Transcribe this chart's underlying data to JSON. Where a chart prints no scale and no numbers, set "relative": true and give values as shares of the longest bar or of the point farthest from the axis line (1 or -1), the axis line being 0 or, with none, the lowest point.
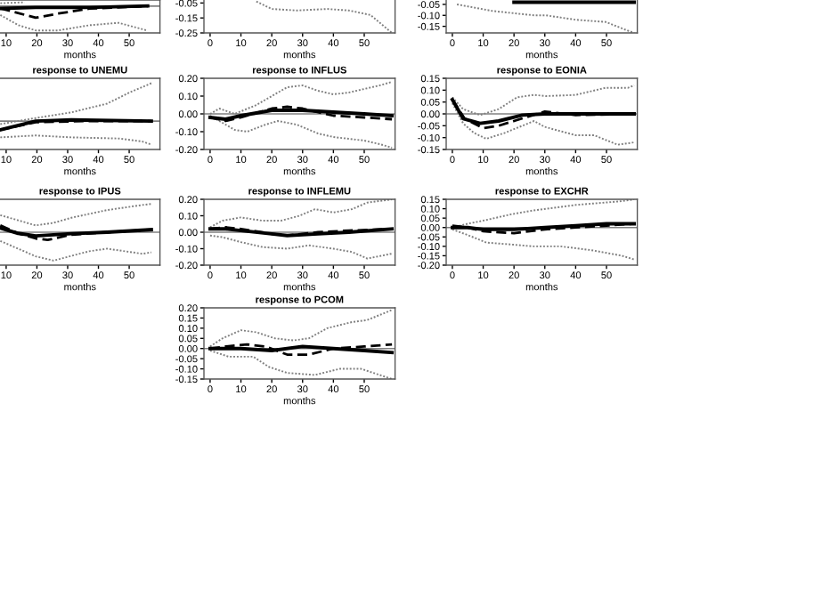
{
  "chart_data": [
    {
      "type": "line",
      "relative": true,
      "xlabel": "months",
      "xlim": [
        8,
        60
      ],
      "xticks": [
        10,
        20,
        30,
        40,
        50
      ],
      "tick_labels": "x",
      "grid": false,
      "legend": false,
      "ref_lines": [
        {
          "axis": "y",
          "value": 0,
          "color": "#808080"
        }
      ],
      "series": [
        {
          "color": "#808080",
          "line_style": "dotted",
          "x": [
            8.1,
            14,
            19.6,
            27,
            37,
            46.6,
            56
          ],
          "values": [
            -0.36,
            -0.78,
            -0.99,
            -0.99,
            -0.78,
            -0.68,
            -1
          ]
        },
        {
          "color": "#808080",
          "line_style": "dotted",
          "x": [
            8.1,
            12,
            16
          ],
          "values": [
            0.12,
            0.14,
            0.16
          ]
        },
        {
          "color": "#000000",
          "line_style": "solid",
          "x": [
            8.1,
            19.6,
            37,
            56
          ],
          "values": [
            -0.09,
            -0.05,
            -0.05,
            0.01
          ]
        },
        {
          "color": "#000000",
          "line_style": "dashed",
          "x": [
            8.1,
            19.6,
            27,
            37,
            56
          ],
          "values": [
            -0.09,
            -0.47,
            -0.3,
            -0.1,
            0
          ]
        }
      ]
    },
    {
      "type": "line",
      "xlabel": "months",
      "xlim": [
        -2,
        60
      ],
      "ylim": [
        -0.25,
        -0.03
      ],
      "xticks": [
        0,
        10,
        20,
        30,
        40,
        50
      ],
      "yticks": [
        {
          "value": -0.25,
          "label": "-0.25"
        },
        {
          "value": -0.15,
          "label": "-0.15"
        },
        {
          "value": -0.05,
          "label": "-0.05"
        }
      ],
      "grid": false,
      "legend": false,
      "series": [
        {
          "color": "#808080",
          "line_style": "dotted",
          "x": [
            15,
            20,
            28,
            38,
            45,
            52,
            59
          ],
          "values": [
            -0.04,
            -0.09,
            -0.1,
            -0.09,
            -0.1,
            -0.13,
            -0.25
          ]
        }
      ]
    },
    {
      "type": "line",
      "xlabel": "months",
      "xlim": [
        -2,
        60
      ],
      "ylim": [
        -0.18,
        -0.03
      ],
      "xticks": [
        0,
        10,
        20,
        30,
        40,
        50
      ],
      "yticks": [
        {
          "value": -0.15,
          "label": "-0.15"
        },
        {
          "value": -0.1,
          "label": "-0.10"
        },
        {
          "value": -0.05,
          "label": "-0.05"
        }
      ],
      "grid": false,
      "legend": false,
      "series": [
        {
          "color": "#808080",
          "line_style": "dotted",
          "x": [
            1.5,
            13,
            26.6,
            30.4,
            40,
            49.7,
            57,
            59
          ],
          "values": [
            -0.05,
            -0.08,
            -0.1,
            -0.1,
            -0.12,
            -0.13,
            -0.17,
            -0.18
          ]
        },
        {
          "color": "#000000",
          "line_style": "solid",
          "x": [
            20,
            59
          ],
          "values": [
            -0.04,
            -0.04
          ]
        }
      ]
    },
    {
      "type": "line",
      "relative": true,
      "title": "response to UNEMU",
      "xlabel": "months",
      "xlim": [
        8,
        60
      ],
      "xticks": [
        10,
        20,
        30,
        40,
        50
      ],
      "tick_labels": "x",
      "grid": false,
      "legend": false,
      "ref_lines": [
        {
          "axis": "y",
          "value": 0,
          "color": "#808080"
        }
      ],
      "series": [
        {
          "color": "#808080",
          "line_style": "dotted",
          "x": [
            8.1,
            19.6,
            31.2,
            42.8,
            50.5,
            57.2
          ],
          "values": [
            -0.08,
            0.08,
            0.23,
            0.46,
            0.77,
            1.0
          ]
        },
        {
          "color": "#808080",
          "line_style": "dotted",
          "x": [
            8.1,
            19.6,
            31.2,
            46.6,
            54.3,
            57.2
          ],
          "values": [
            -0.43,
            -0.38,
            -0.43,
            -0.46,
            -0.54,
            -0.62
          ]
        },
        {
          "color": "#000000",
          "line_style": "solid",
          "x": [
            8.1,
            19.6,
            31.2,
            57.2
          ],
          "values": [
            -0.23,
            0,
            0.03,
            0
          ]
        },
        {
          "color": "#000000",
          "line_style": "dashed",
          "x": [
            8.1,
            19.6,
            37,
            57.2
          ],
          "values": [
            -0.23,
            -0.03,
            0,
            0
          ]
        }
      ]
    },
    {
      "type": "line",
      "title": "response to INFLUS",
      "xlabel": "months",
      "xlim": [
        -2,
        60
      ],
      "ylim": [
        -0.2,
        0.2
      ],
      "xticks": [
        0,
        10,
        20,
        30,
        40,
        50
      ],
      "yticks": [
        {
          "value": -0.2,
          "label": "-0.20"
        },
        {
          "value": -0.1,
          "label": "-0.10"
        },
        {
          "value": 0,
          "label": "0.00"
        },
        {
          "value": 0.1,
          "label": "0.10"
        },
        {
          "value": 0.2,
          "label": "0.20"
        }
      ],
      "grid": false,
      "legend": false,
      "ref_lines": [
        {
          "axis": "y",
          "value": 0,
          "color": "#808080"
        }
      ],
      "series": [
        {
          "color": "#808080",
          "line_style": "dotted",
          "x": [
            0,
            3,
            8,
            15,
            20,
            25,
            30,
            35,
            40,
            45,
            50,
            55,
            59
          ],
          "values": [
            0.0,
            0.03,
            0.0,
            0.05,
            0.1,
            0.15,
            0.16,
            0.13,
            0.11,
            0.12,
            0.14,
            0.16,
            0.18
          ]
        },
        {
          "color": "#808080",
          "line_style": "dotted",
          "x": [
            0,
            3,
            8,
            12,
            18,
            22,
            28,
            35,
            40,
            45,
            50,
            55,
            59
          ],
          "values": [
            -0.01,
            -0.04,
            -0.09,
            -0.1,
            -0.06,
            -0.04,
            -0.06,
            -0.11,
            -0.13,
            -0.14,
            -0.15,
            -0.17,
            -0.19
          ]
        },
        {
          "color": "#000000",
          "line_style": "solid",
          "x": [
            0,
            5,
            10,
            20,
            30,
            40,
            50,
            59
          ],
          "values": [
            -0.02,
            -0.03,
            -0.01,
            0.02,
            0.02,
            0.01,
            0.0,
            -0.01
          ]
        },
        {
          "color": "#000000",
          "line_style": "dashed",
          "x": [
            0,
            5,
            10,
            20,
            25,
            30,
            40,
            50,
            59
          ],
          "values": [
            -0.02,
            -0.04,
            -0.02,
            0.03,
            0.04,
            0.03,
            -0.01,
            -0.02,
            -0.03
          ]
        }
      ]
    },
    {
      "type": "line",
      "title": "response to EONIA",
      "xlabel": "months",
      "xlim": [
        -2,
        60
      ],
      "ylim": [
        -0.15,
        0.15
      ],
      "xticks": [
        0,
        10,
        20,
        30,
        40,
        50
      ],
      "yticks": [
        {
          "value": -0.15,
          "label": "-0.15"
        },
        {
          "value": -0.1,
          "label": "-0.10"
        },
        {
          "value": -0.05,
          "label": "-0.05"
        },
        {
          "value": 0,
          "label": "0.00"
        },
        {
          "value": 0.05,
          "label": "0.05"
        },
        {
          "value": 0.1,
          "label": "0.10"
        },
        {
          "value": 0.15,
          "label": "0.15"
        }
      ],
      "grid": false,
      "legend": false,
      "ref_lines": [
        {
          "axis": "y",
          "value": 0,
          "color": "#808080"
        }
      ],
      "series": [
        {
          "color": "#808080",
          "line_style": "dotted",
          "x": [
            0,
            3.5,
            9,
            15,
            21,
            26.5,
            30.4,
            40,
            49.7,
            57,
            59
          ],
          "values": [
            0.07,
            0.02,
            -0.005,
            0.02,
            0.07,
            0.08,
            0.075,
            0.08,
            0.11,
            0.11,
            0.12
          ]
        },
        {
          "color": "#808080",
          "line_style": "dotted",
          "x": [
            0,
            3.5,
            7,
            11,
            17,
            26.5,
            30,
            40,
            46,
            53.6,
            59
          ],
          "values": [
            0.045,
            -0.04,
            -0.08,
            -0.105,
            -0.08,
            -0.03,
            -0.055,
            -0.09,
            -0.09,
            -0.13,
            -0.12
          ]
        },
        {
          "color": "#000000",
          "line_style": "solid",
          "x": [
            0,
            3.5,
            9,
            15,
            22.7,
            30,
            59
          ],
          "values": [
            0.06,
            -0.02,
            -0.04,
            -0.03,
            -0.005,
            0.0,
            0.0
          ]
        },
        {
          "color": "#000000",
          "line_style": "dashed",
          "x": [
            0,
            4,
            10,
            15,
            20,
            25,
            30,
            40,
            59
          ],
          "values": [
            0.06,
            -0.02,
            -0.06,
            -0.05,
            -0.03,
            -0.01,
            0.01,
            -0.005,
            0.0
          ]
        }
      ]
    },
    {
      "type": "line",
      "relative": true,
      "title": "response to IPUS",
      "xlabel": "months",
      "xlim": [
        8,
        60
      ],
      "xticks": [
        10,
        20,
        30,
        40,
        50
      ],
      "tick_labels": "x",
      "grid": false,
      "legend": false,
      "ref_lines": [
        {
          "axis": "y",
          "value": 0,
          "color": "#808080"
        }
      ],
      "series": [
        {
          "color": "#808080",
          "line_style": "dotted",
          "x": [
            8.1,
            13.9,
            19.6,
            25.4,
            31.2,
            42.8,
            54.3,
            57.2
          ],
          "values": [
            0.6,
            0.42,
            0.24,
            0.33,
            0.51,
            0.78,
            0.96,
            1.0
          ]
        },
        {
          "color": "#808080",
          "line_style": "dotted",
          "x": [
            8.1,
            13.9,
            19.6,
            25.4,
            37,
            42.8,
            48.6,
            54.3,
            57.2
          ],
          "values": [
            -0.31,
            -0.58,
            -0.85,
            -1.0,
            -0.67,
            -0.58,
            -0.67,
            -0.76,
            -0.71
          ]
        },
        {
          "color": "#000000",
          "line_style": "solid",
          "x": [
            8.1,
            13.9,
            19.6,
            31.2,
            42.8,
            57.2
          ],
          "values": [
            0.15,
            -0.04,
            -0.13,
            -0.05,
            0,
            0.09
          ]
        },
        {
          "color": "#000000",
          "line_style": "dashed",
          "x": [
            8.1,
            13.9,
            19.6,
            23.5,
            31.2,
            42.8,
            57.2
          ],
          "values": [
            0.24,
            -0.04,
            -0.22,
            -0.27,
            -0.09,
            0,
            0.09
          ]
        }
      ]
    },
    {
      "type": "line",
      "title": "response to INFLEMU",
      "xlabel": "months",
      "xlim": [
        -2,
        60
      ],
      "ylim": [
        -0.2,
        0.2
      ],
      "xticks": [
        0,
        10,
        20,
        30,
        40,
        50
      ],
      "yticks": [
        {
          "value": -0.2,
          "label": "-0.20"
        },
        {
          "value": -0.1,
          "label": "-0.10"
        },
        {
          "value": 0,
          "label": "0.00"
        },
        {
          "value": 0.1,
          "label": "0.10"
        },
        {
          "value": 0.2,
          "label": "0.20"
        }
      ],
      "grid": false,
      "legend": false,
      "ref_lines": [
        {
          "axis": "y",
          "value": 0,
          "color": "#808080"
        }
      ],
      "series": [
        {
          "color": "#808080",
          "line_style": "dotted",
          "x": [
            0,
            4,
            10,
            17,
            23,
            29,
            34,
            40,
            46,
            51,
            59
          ],
          "values": [
            0.03,
            0.07,
            0.09,
            0.07,
            0.07,
            0.1,
            0.14,
            0.12,
            0.14,
            0.18,
            0.2
          ]
        },
        {
          "color": "#808080",
          "line_style": "dotted",
          "x": [
            0,
            4,
            10,
            17,
            25,
            32,
            40,
            46,
            51,
            59
          ],
          "values": [
            -0.02,
            -0.03,
            -0.06,
            -0.09,
            -0.1,
            -0.08,
            -0.1,
            -0.12,
            -0.16,
            -0.13
          ]
        },
        {
          "color": "#000000",
          "line_style": "solid",
          "x": [
            0,
            5,
            10,
            20,
            25,
            35,
            45,
            59
          ],
          "values": [
            0.02,
            0.02,
            0.01,
            -0.01,
            -0.02,
            -0.01,
            0.0,
            0.02
          ]
        },
        {
          "color": "#000000",
          "line_style": "dashed",
          "x": [
            0,
            5,
            10,
            20,
            25,
            35,
            45,
            59
          ],
          "values": [
            0.02,
            0.03,
            0.02,
            -0.01,
            -0.02,
            0.0,
            0.01,
            0.02
          ]
        }
      ]
    },
    {
      "type": "line",
      "title": "response to EXCHR",
      "xlabel": "months",
      "xlim": [
        -2,
        60
      ],
      "ylim": [
        -0.2,
        0.15
      ],
      "xticks": [
        0,
        10,
        20,
        30,
        40,
        50
      ],
      "yticks": [
        {
          "value": -0.2,
          "label": "-0.20"
        },
        {
          "value": -0.15,
          "label": "-0.15"
        },
        {
          "value": -0.1,
          "label": "-0.10"
        },
        {
          "value": -0.05,
          "label": "-0.05"
        },
        {
          "value": 0,
          "label": "0.00"
        },
        {
          "value": 0.05,
          "label": "0.05"
        },
        {
          "value": 0.1,
          "label": "0.10"
        },
        {
          "value": 0.15,
          "label": "0.15"
        }
      ],
      "grid": false,
      "legend": false,
      "ref_lines": [
        {
          "axis": "y",
          "value": 0,
          "color": "#808080"
        }
      ],
      "series": [
        {
          "color": "#808080",
          "line_style": "dotted",
          "x": [
            0,
            5,
            11,
            19,
            26,
            40,
            55,
            59
          ],
          "values": [
            0.0,
            0.02,
            0.04,
            0.07,
            0.09,
            0.12,
            0.14,
            0.15
          ]
        },
        {
          "color": "#808080",
          "line_style": "dotted",
          "x": [
            0,
            5,
            11,
            19,
            26,
            35,
            45,
            55,
            59
          ],
          "values": [
            -0.01,
            -0.04,
            -0.08,
            -0.09,
            -0.1,
            -0.1,
            -0.12,
            -0.15,
            -0.17
          ]
        },
        {
          "color": "#000000",
          "line_style": "solid",
          "x": [
            0,
            5,
            10,
            20,
            30,
            40,
            50,
            59
          ],
          "values": [
            0.0,
            0.0,
            -0.01,
            -0.01,
            0.0,
            0.01,
            0.02,
            0.02
          ]
        },
        {
          "color": "#000000",
          "line_style": "dashed",
          "x": [
            0,
            5,
            10,
            20,
            30,
            40,
            50,
            59
          ],
          "values": [
            0.01,
            0.0,
            -0.02,
            -0.03,
            -0.01,
            0.0,
            0.01,
            0.02
          ]
        }
      ]
    },
    {
      "type": "line",
      "title": "response to PCOM",
      "xlabel": "months",
      "xlim": [
        -2,
        60
      ],
      "ylim": [
        -0.15,
        0.2
      ],
      "xticks": [
        0,
        10,
        20,
        30,
        40,
        50
      ],
      "yticks": [
        {
          "value": -0.15,
          "label": "-0.15"
        },
        {
          "value": -0.1,
          "label": "-0.10"
        },
        {
          "value": -0.05,
          "label": "-0.05"
        },
        {
          "value": 0,
          "label": "0.00"
        },
        {
          "value": 0.05,
          "label": "0.05"
        },
        {
          "value": 0.1,
          "label": "0.10"
        },
        {
          "value": 0.15,
          "label": "0.15"
        },
        {
          "value": 0.2,
          "label": "0.20"
        }
      ],
      "grid": false,
      "legend": false,
      "ref_lines": [
        {
          "axis": "y",
          "value": 0,
          "color": "#808080"
        }
      ],
      "series": [
        {
          "color": "#808080",
          "line_style": "dotted",
          "x": [
            0,
            4,
            10,
            15,
            21,
            27,
            32,
            38,
            46,
            51,
            59
          ],
          "values": [
            0.01,
            0.05,
            0.09,
            0.08,
            0.05,
            0.04,
            0.05,
            0.1,
            0.13,
            0.14,
            0.19
          ]
        },
        {
          "color": "#808080",
          "line_style": "dotted",
          "x": [
            0,
            6,
            14,
            19,
            25,
            34,
            42,
            49,
            59
          ],
          "values": [
            -0.01,
            -0.04,
            -0.04,
            -0.09,
            -0.12,
            -0.13,
            -0.1,
            -0.1,
            -0.15
          ]
        },
        {
          "color": "#000000",
          "line_style": "solid",
          "x": [
            0,
            10,
            20,
            30,
            40,
            50,
            59
          ],
          "values": [
            0.0,
            0.0,
            -0.01,
            0.01,
            0.0,
            -0.01,
            -0.02
          ]
        },
        {
          "color": "#000000",
          "line_style": "dashed",
          "x": [
            0,
            5,
            12,
            18,
            25,
            32,
            40,
            50,
            59
          ],
          "values": [
            0.0,
            0.01,
            0.02,
            0.01,
            -0.03,
            -0.03,
            0.0,
            0.01,
            0.02
          ]
        }
      ]
    }
  ]
}
